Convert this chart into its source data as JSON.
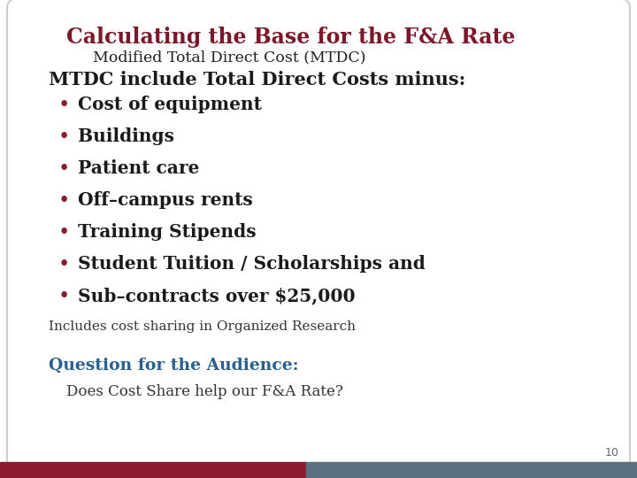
{
  "title": "Calculating the Base for the F&A Rate",
  "subtitle": "Modified Total Direct Cost (MTDC)",
  "heading": "MTDC include Total Direct Costs minus:",
  "bullets": [
    "Cost of equipment",
    "Buildings",
    "Patient care",
    "Off–campus rents",
    "Training Stipends",
    "Student Tuition / Scholarships and",
    "Sub–contracts over $25,000"
  ],
  "note": "Includes cost sharing in Organized Research",
  "question_label": "Question for the Audience:",
  "question_text": "Does Cost Share help our F&A Rate?",
  "page_number": "10",
  "bg_color": "#ffffff",
  "title_color": "#7b1728",
  "subtitle_color": "#222222",
  "heading_color": "#1a1a1a",
  "bullet_color": "#1a1a1a",
  "bullet_dot_color": "#8b1c2e",
  "note_color": "#333333",
  "question_label_color": "#2a5f8f",
  "question_text_color": "#333333",
  "page_num_color": "#666666",
  "bar_left_color": "#8b1c2e",
  "bar_right_color": "#5a7080",
  "bar_split": 0.48
}
